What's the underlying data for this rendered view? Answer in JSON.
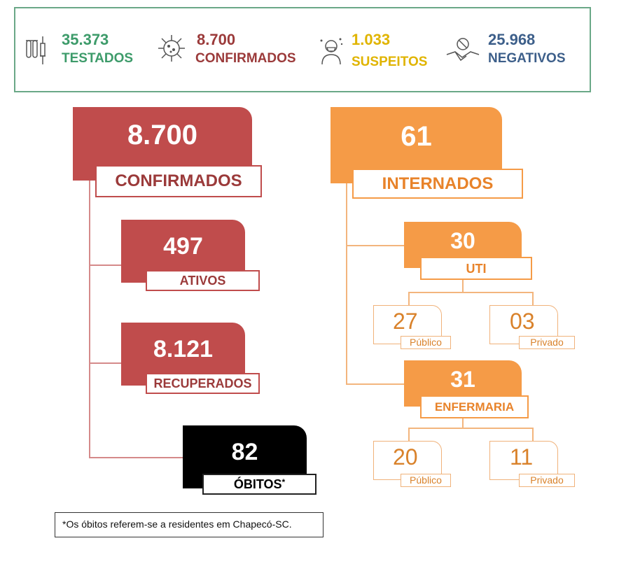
{
  "stats": {
    "testados": {
      "value": "35.373",
      "label": "TESTADOS",
      "color": "#3d9b6a",
      "icon": "test-tubes-syringe-icon"
    },
    "confirmados": {
      "value": "8.700",
      "label": "CONFIRMADOS",
      "color": "#9b3a3a",
      "icon": "virus-icon"
    },
    "suspeitos": {
      "value": "1.033",
      "label": "SUSPEITOS",
      "color": "#e0b400",
      "icon": "sick-person-icon"
    },
    "negativos": {
      "value": "25.968",
      "label": "NEGATIVOS",
      "color": "#3d5f8a",
      "icon": "handshake-no-virus-icon"
    }
  },
  "confirmados": {
    "value": "8.700",
    "label": "CONFIRMADOS"
  },
  "ativos": {
    "value": "497",
    "label": "ATIVOS"
  },
  "recuperados": {
    "value": "8.121",
    "label": "RECUPERADOS"
  },
  "obitos": {
    "value": "82",
    "label": "ÓBITOS",
    "asterisk": "*"
  },
  "internados": {
    "value": "61",
    "label": "INTERNADOS"
  },
  "uti": {
    "value": "30",
    "label": "UTI",
    "publico": {
      "value": "27",
      "label": "Público"
    },
    "privado": {
      "value": "03",
      "label": "Privado"
    }
  },
  "enfermaria": {
    "value": "31",
    "label": "ENFERMARIA",
    "publico": {
      "value": "20",
      "label": "Público"
    },
    "privado": {
      "value": "11",
      "label": "Privado"
    }
  },
  "note": "*Os óbitos referem-se a residentes em Chapecó-SC.",
  "colors": {
    "red": "#c04c4c",
    "orange": "#f59b47",
    "black": "#000000"
  }
}
